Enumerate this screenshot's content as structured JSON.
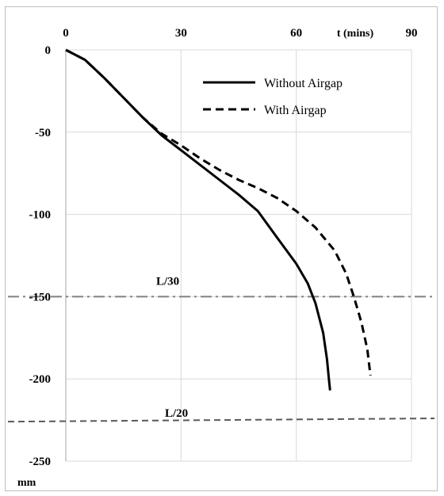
{
  "chart_data": {
    "type": "line",
    "title": "",
    "xlabel": "t (mins)",
    "ylabel": "mm",
    "xlim": [
      0,
      90
    ],
    "ylim": [
      -250,
      0
    ],
    "x_ticks": [
      0,
      30,
      60,
      90
    ],
    "y_ticks": [
      0,
      -50,
      -100,
      -150,
      -200,
      -250
    ],
    "x_tick_labels": [
      "0",
      "30",
      "60",
      "90"
    ],
    "y_tick_labels": [
      "0",
      "-50",
      "-100",
      "-150",
      "-200",
      "-250"
    ],
    "x_axis_position": "top",
    "grid": true,
    "legend_placement": "top-right",
    "series": [
      {
        "name": "Without Airgap",
        "style": "solid",
        "color": "#000000",
        "points": [
          [
            0,
            0
          ],
          [
            5,
            -6
          ],
          [
            10,
            -17
          ],
          [
            15,
            -29
          ],
          [
            20,
            -41
          ],
          [
            25,
            -52
          ],
          [
            30,
            -61
          ],
          [
            35,
            -70
          ],
          [
            40,
            -79
          ],
          [
            45,
            -88
          ],
          [
            50,
            -98
          ],
          [
            55,
            -114
          ],
          [
            60,
            -130
          ],
          [
            63,
            -142
          ],
          [
            65,
            -154
          ],
          [
            67,
            -172
          ],
          [
            68,
            -188
          ],
          [
            68.5,
            -200
          ],
          [
            68.8,
            -207
          ]
        ]
      },
      {
        "name": "With Airgap",
        "style": "dashed",
        "color": "#000000",
        "points": [
          [
            0,
            0
          ],
          [
            5,
            -6
          ],
          [
            10,
            -17
          ],
          [
            15,
            -29
          ],
          [
            20,
            -41
          ],
          [
            25,
            -51
          ],
          [
            30,
            -58
          ],
          [
            35,
            -66
          ],
          [
            40,
            -73
          ],
          [
            45,
            -79
          ],
          [
            50,
            -84
          ],
          [
            55,
            -90
          ],
          [
            60,
            -98
          ],
          [
            65,
            -108
          ],
          [
            70,
            -122
          ],
          [
            73,
            -136
          ],
          [
            75,
            -150
          ],
          [
            77,
            -166
          ],
          [
            78.5,
            -182
          ],
          [
            79.3,
            -198
          ]
        ]
      }
    ],
    "reference_lines": [
      {
        "label": "L/30",
        "y": -150,
        "style": "dash-dot",
        "color": "#808080"
      },
      {
        "label": "L/20",
        "y_start": -226,
        "y_end": -224,
        "style": "dashed",
        "color": "#595959"
      }
    ]
  }
}
